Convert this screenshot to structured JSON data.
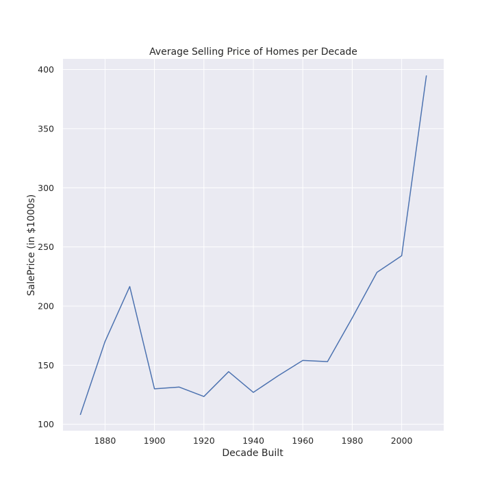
{
  "chart_data": {
    "type": "line",
    "title": "Average Selling Price of Homes per Decade",
    "xlabel": "Decade Built",
    "ylabel": "SalePrice (in $1000s)",
    "x": [
      1870,
      1880,
      1890,
      1900,
      1910,
      1920,
      1930,
      1940,
      1950,
      1960,
      1970,
      1980,
      1990,
      2000,
      2010
    ],
    "series": [
      {
        "values": [
          108,
          170,
          216.5,
          130,
          131.5,
          123.5,
          144.5,
          127,
          141,
          154,
          153,
          190,
          228.5,
          242.5,
          395
        ]
      }
    ],
    "xticks": [
      1880,
      1900,
      1920,
      1940,
      1960,
      1980,
      2000
    ],
    "yticks": [
      100,
      150,
      200,
      250,
      300,
      350,
      400
    ],
    "xlim": [
      1863,
      2017
    ],
    "ylim": [
      94.6,
      409
    ],
    "grid": true,
    "colors": {
      "background": "#eaeaf2",
      "grid": "#ffffff",
      "line": "#4c72b0"
    }
  }
}
